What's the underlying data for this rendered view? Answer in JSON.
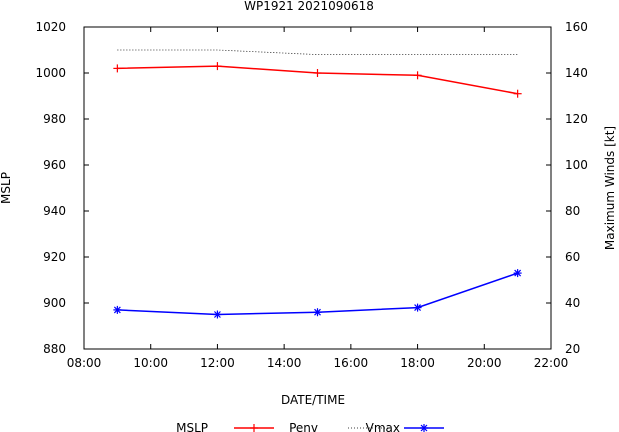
{
  "chart_data": {
    "type": "line",
    "title": "WP1921 2021090618",
    "xlabel": "DATE/TIME",
    "ylabel": "MSLP",
    "y2label": "Maximum Winds [kt]",
    "x": [
      "09:00",
      "12:00",
      "15:00",
      "18:00",
      "21:00"
    ],
    "x_hours": [
      9,
      12,
      15,
      18,
      21
    ],
    "xlim": [
      8,
      22
    ],
    "x_ticks": [
      "08:00",
      "10:00",
      "12:00",
      "14:00",
      "16:00",
      "18:00",
      "20:00",
      "22:00"
    ],
    "ylim": [
      880,
      1020
    ],
    "y_ticks": [
      "880",
      "900",
      "920",
      "940",
      "960",
      "980",
      "1000",
      "1020"
    ],
    "y2lim": [
      20,
      160
    ],
    "y2_ticks": [
      "20",
      "40",
      "60",
      "80",
      "100",
      "120",
      "140",
      "160"
    ],
    "grid": false,
    "legend_position": "bottom",
    "series": [
      {
        "name": "MSLP",
        "axis": "left",
        "values": [
          1002,
          1003,
          1000,
          999,
          991
        ],
        "color": "#ff0000",
        "marker": "plus",
        "style": "solid"
      },
      {
        "name": "Penv",
        "axis": "left",
        "values": [
          1010,
          1010,
          1008,
          1008,
          1008
        ],
        "color": "#000000",
        "marker": "none",
        "style": "dotted"
      },
      {
        "name": "Vmax",
        "axis": "right",
        "values": [
          37,
          35,
          36,
          38,
          53
        ],
        "color": "#0000ff",
        "marker": "star",
        "style": "solid"
      }
    ]
  }
}
